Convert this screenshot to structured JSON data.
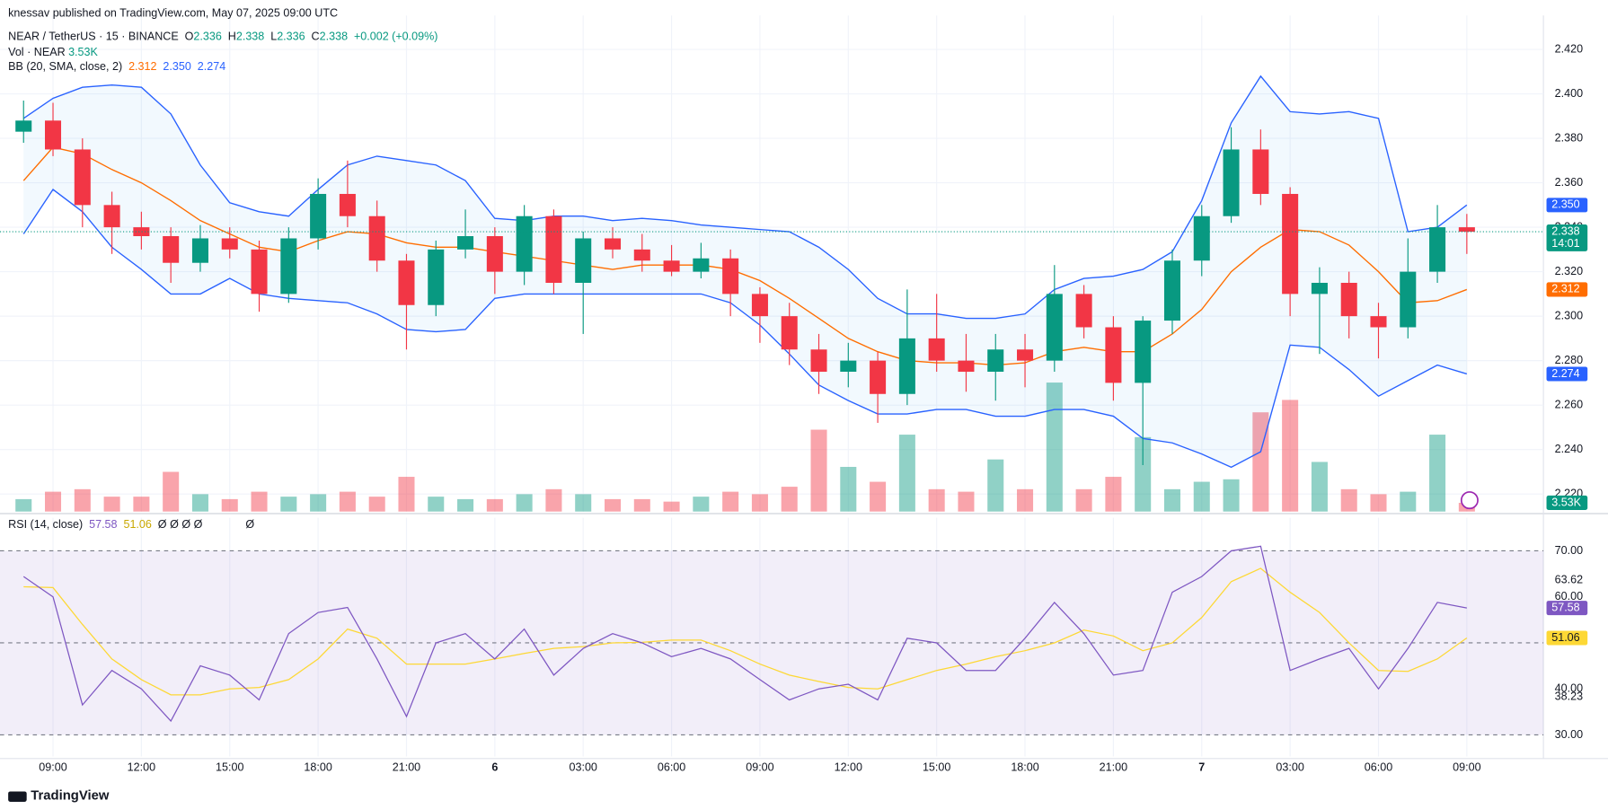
{
  "header": {
    "publisher": "knessav published on TradingView.com, May 07, 2025 09:00 UTC"
  },
  "footer": {
    "brand": "TradingView"
  },
  "chart_data": [
    {
      "type": "candlestick",
      "legend": {
        "symbol": "NEAR / TetherUS · 15 · BINANCE",
        "ohlc": [
          {
            "label": "O",
            "value": 2.336
          },
          {
            "label": "H",
            "value": 2.338
          },
          {
            "label": "L",
            "value": 2.336
          },
          {
            "label": "C",
            "value": 2.338
          }
        ],
        "change": {
          "value": 0.002,
          "label": "+0.002"
        },
        "change_pct": {
          "value": 0.09,
          "label": "(+0.09%)"
        }
      },
      "x": [
        8,
        9,
        10,
        11,
        12,
        13,
        14,
        15,
        16,
        17,
        18,
        19,
        20,
        21,
        22,
        23,
        24,
        25,
        26,
        27,
        28,
        29,
        30,
        31,
        32,
        33,
        34,
        35,
        36,
        37,
        38,
        39,
        40,
        41,
        42,
        43,
        44,
        45,
        46,
        47,
        48,
        49,
        50,
        51,
        52,
        53,
        54,
        55,
        56,
        57
      ],
      "open": [
        2.383,
        2.388,
        2.375,
        2.35,
        2.34,
        2.336,
        2.324,
        2.335,
        2.33,
        2.31,
        2.335,
        2.355,
        2.345,
        2.325,
        2.305,
        2.33,
        2.336,
        2.32,
        2.345,
        2.315,
        2.335,
        2.33,
        2.325,
        2.32,
        2.326,
        2.31,
        2.3,
        2.285,
        2.275,
        2.28,
        2.265,
        2.29,
        2.28,
        2.275,
        2.285,
        2.28,
        2.31,
        2.295,
        2.27,
        2.298,
        2.325,
        2.345,
        2.375,
        2.355,
        2.31,
        2.315,
        2.3,
        2.295,
        2.32,
        2.34
      ],
      "high": [
        2.397,
        2.396,
        2.38,
        2.356,
        2.347,
        2.34,
        2.341,
        2.34,
        2.334,
        2.34,
        2.362,
        2.37,
        2.352,
        2.328,
        2.334,
        2.348,
        2.34,
        2.35,
        2.348,
        2.338,
        2.34,
        2.337,
        2.332,
        2.333,
        2.33,
        2.313,
        2.306,
        2.292,
        2.288,
        2.284,
        2.312,
        2.31,
        2.292,
        2.292,
        2.292,
        2.323,
        2.314,
        2.3,
        2.3,
        2.33,
        2.35,
        2.385,
        2.384,
        2.358,
        2.322,
        2.32,
        2.306,
        2.335,
        2.35,
        2.346
      ],
      "low": [
        2.378,
        2.372,
        2.34,
        2.328,
        2.33,
        2.315,
        2.32,
        2.326,
        2.302,
        2.306,
        2.33,
        2.34,
        2.32,
        2.285,
        2.3,
        2.326,
        2.31,
        2.314,
        2.31,
        2.292,
        2.326,
        2.32,
        2.318,
        2.317,
        2.3,
        2.288,
        2.278,
        2.265,
        2.268,
        2.252,
        2.26,
        2.275,
        2.266,
        2.262,
        2.268,
        2.275,
        2.29,
        2.262,
        2.233,
        2.292,
        2.318,
        2.342,
        2.35,
        2.3,
        2.283,
        2.29,
        2.281,
        2.29,
        2.315,
        2.328
      ],
      "close": [
        2.388,
        2.375,
        2.35,
        2.34,
        2.336,
        2.324,
        2.335,
        2.33,
        2.31,
        2.335,
        2.355,
        2.345,
        2.325,
        2.305,
        2.33,
        2.336,
        2.32,
        2.345,
        2.315,
        2.335,
        2.33,
        2.325,
        2.32,
        2.326,
        2.31,
        2.3,
        2.285,
        2.275,
        2.28,
        2.265,
        2.29,
        2.28,
        2.275,
        2.285,
        2.28,
        2.31,
        2.295,
        2.27,
        2.298,
        2.325,
        2.345,
        2.375,
        2.355,
        2.31,
        2.315,
        2.3,
        2.295,
        2.32,
        2.34,
        2.338
      ],
      "up_color": "#089981",
      "down_color": "#f23645",
      "xlim": [
        7.2,
        59.6
      ],
      "xticks": [
        {
          "value": 9,
          "label": "09:00"
        },
        {
          "value": 12,
          "label": "12:00"
        },
        {
          "value": 15,
          "label": "15:00"
        },
        {
          "value": 18,
          "label": "18:00"
        },
        {
          "value": 21,
          "label": "21:00"
        },
        {
          "value": 24,
          "label": "6"
        },
        {
          "value": 27,
          "label": "03:00"
        },
        {
          "value": 30,
          "label": "06:00"
        },
        {
          "value": 33,
          "label": "09:00"
        },
        {
          "value": 36,
          "label": "12:00"
        },
        {
          "value": 39,
          "label": "15:00"
        },
        {
          "value": 42,
          "label": "18:00"
        },
        {
          "value": 45,
          "label": "21:00"
        },
        {
          "value": 48,
          "label": "7"
        },
        {
          "value": 51,
          "label": "03:00"
        },
        {
          "value": 54,
          "label": "06:00"
        },
        {
          "value": 57,
          "label": "09:00"
        }
      ],
      "ylim": [
        2.2121,
        2.4353
      ],
      "yticks": [
        {
          "value": 2.22,
          "label": "2.220"
        },
        {
          "value": 2.24,
          "label": "2.240"
        },
        {
          "value": 2.26,
          "label": "2.260"
        },
        {
          "value": 2.28,
          "label": "2.280"
        },
        {
          "value": 2.3,
          "label": "2.300"
        },
        {
          "value": 2.32,
          "label": "2.320"
        },
        {
          "value": 2.34,
          "label": "2.340"
        },
        {
          "value": 2.36,
          "label": "2.360"
        },
        {
          "value": 2.38,
          "label": "2.380"
        },
        {
          "value": 2.4,
          "label": "2.400"
        },
        {
          "value": 2.42,
          "label": "2.420"
        }
      ],
      "grid": true,
      "countdown": "14:01",
      "badges": [
        {
          "value": 2.35,
          "label": "2.350",
          "color": "#2962ff"
        },
        {
          "value": 2.338,
          "label": "2.338",
          "color": "#089981"
        },
        {
          "value": 2.312,
          "label": "2.312",
          "color": "#ff6d00"
        },
        {
          "value": 2.274,
          "label": "2.274",
          "color": "#2962ff"
        }
      ],
      "bb": {
        "title": "BB (20, SMA, close, 2)",
        "series": [
          {
            "color": "#2962ff",
            "values": [
              2.389,
              2.398,
              2.403,
              2.404,
              2.403,
              2.391,
              2.368,
              2.351,
              2.347,
              2.345,
              2.357,
              2.368,
              2.372,
              2.37,
              2.368,
              2.361,
              2.344,
              2.343,
              2.345,
              2.345,
              2.343,
              2.344,
              2.343,
              2.341,
              2.34,
              2.339,
              2.338,
              2.331,
              2.321,
              2.308,
              2.301,
              2.301,
              2.299,
              2.299,
              2.301,
              2.312,
              2.317,
              2.318,
              2.321,
              2.329,
              2.352,
              2.387,
              2.408,
              2.392,
              2.391,
              2.392,
              2.389,
              2.338,
              2.34,
              2.35
            ]
          },
          {
            "color": "#ff6d00",
            "values": [
              2.361,
              2.376,
              2.373,
              2.366,
              2.36,
              2.352,
              2.343,
              2.337,
              2.331,
              2.329,
              2.334,
              2.338,
              2.337,
              2.333,
              2.331,
              2.331,
              2.329,
              2.327,
              2.325,
              2.323,
              2.321,
              2.323,
              2.323,
              2.323,
              2.321,
              2.316,
              2.308,
              2.299,
              2.29,
              2.284,
              2.28,
              2.279,
              2.279,
              2.278,
              2.279,
              2.284,
              2.286,
              2.284,
              2.284,
              2.292,
              2.303,
              2.32,
              2.331,
              2.339,
              2.338,
              2.332,
              2.32,
              2.306,
              2.307,
              2.312
            ]
          },
          {
            "color": "#2962ff",
            "values": [
              2.337,
              2.357,
              2.347,
              2.331,
              2.321,
              2.31,
              2.31,
              2.317,
              2.31,
              2.308,
              2.307,
              2.306,
              2.301,
              2.294,
              2.293,
              2.294,
              2.308,
              2.31,
              2.31,
              2.31,
              2.31,
              2.31,
              2.31,
              2.31,
              2.306,
              2.296,
              2.283,
              2.269,
              2.262,
              2.256,
              2.256,
              2.258,
              2.258,
              2.255,
              2.255,
              2.258,
              2.258,
              2.255,
              2.245,
              2.243,
              2.238,
              2.232,
              2.239,
              2.287,
              2.286,
              2.276,
              2.264,
              2.271,
              2.278,
              2.274
            ]
          }
        ]
      },
      "volume": {
        "title": "Vol · NEAR",
        "ylim": [
          0,
          200000
        ],
        "values": [
          5000,
          8000,
          9000,
          6000,
          6000,
          16000,
          7000,
          5000,
          8000,
          6000,
          7000,
          8000,
          6000,
          14000,
          6000,
          5000,
          5000,
          7000,
          9000,
          7000,
          5000,
          5000,
          4000,
          6000,
          8000,
          7000,
          10000,
          33000,
          18000,
          12000,
          31000,
          9000,
          8000,
          21000,
          9000,
          52000,
          9000,
          14000,
          30000,
          9000,
          12000,
          13000,
          40000,
          45000,
          20000,
          9000,
          7000,
          8000,
          31000,
          3530
        ],
        "badge": {
          "value": 3530,
          "label": "3.53K"
        }
      }
    },
    {
      "type": "line",
      "title": "RSI (14, close)",
      "placeholders": [
        "Ø Ø Ø Ø",
        "Ø"
      ],
      "x": [
        8,
        9,
        10,
        11,
        12,
        13,
        14,
        15,
        16,
        17,
        18,
        19,
        20,
        21,
        22,
        23,
        24,
        25,
        26,
        27,
        28,
        29,
        30,
        31,
        32,
        33,
        34,
        35,
        36,
        37,
        38,
        39,
        40,
        41,
        42,
        43,
        44,
        45,
        46,
        47,
        48,
        49,
        50,
        51,
        52,
        53,
        54,
        55,
        56,
        57
      ],
      "xlim": [
        7.2,
        59.6
      ],
      "series": [
        {
          "color": "#7e57c2",
          "values": [
            64.4,
            60,
            36.5,
            44,
            40,
            33,
            45,
            43,
            37.6,
            52,
            56.6,
            57.7,
            46.5,
            34,
            50,
            52,
            46.5,
            53,
            43,
            48.8,
            52,
            50,
            47,
            48.8,
            46.5,
            42,
            37.6,
            40,
            41,
            37.6,
            51,
            50,
            44,
            44,
            51,
            58.8,
            52,
            43,
            44,
            61,
            64.4,
            70,
            71,
            44,
            46.5,
            48.8,
            40,
            48.8,
            58.8,
            57.58
          ]
        },
        {
          "color": "#fdd835",
          "values": [
            62.2,
            62,
            54,
            46.5,
            42,
            38.7,
            38.7,
            40,
            40.3,
            42,
            46.5,
            53,
            51,
            45.4,
            45.4,
            45.4,
            46.5,
            47.7,
            48.8,
            49.2,
            50,
            50.1,
            50.6,
            50.6,
            48.3,
            45.4,
            43,
            41.6,
            40.3,
            40,
            42,
            44,
            45.4,
            47,
            48.3,
            50,
            52.8,
            51.5,
            48.3,
            50,
            55.5,
            63.3,
            66.2,
            61,
            56.6,
            50,
            44,
            43.8,
            46.5,
            51.06
          ]
        }
      ],
      "ylim": [
        25.3,
        77.2
      ],
      "yticks": [
        {
          "value": 30,
          "label": "30.00"
        },
        {
          "value": 40,
          "label": "40.00"
        },
        {
          "value": 60,
          "label": "60.00"
        },
        {
          "value": 70,
          "label": "70.00"
        }
      ],
      "levels": [
        70,
        50,
        30
      ],
      "badges": [
        {
          "value": 57.58,
          "label": "57.58",
          "color": "#7e57c2"
        },
        {
          "value": 51.06,
          "label": "51.06",
          "color": "#fdd835"
        },
        {
          "value": 63.62,
          "label": "63.62"
        },
        {
          "value": 38.23,
          "label": "38.23"
        }
      ]
    }
  ]
}
